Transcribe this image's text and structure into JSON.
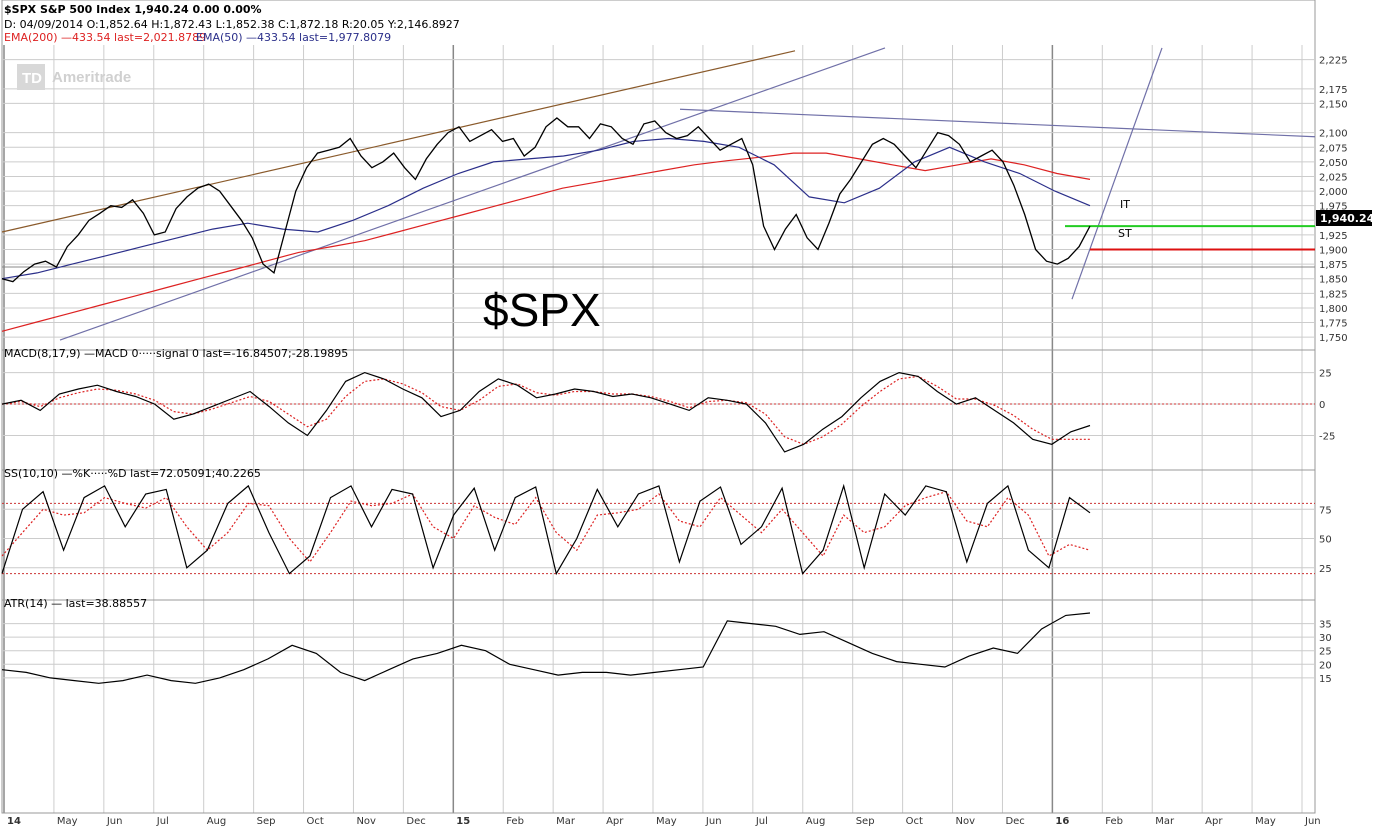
{
  "header": {
    "line1": "$SPX S&P 500 Index  1,940.24  0.00  0.00%",
    "line2": "D: 04/09/2014  O:1,852.64  H:1,872.43  L:1,852.38  C:1,872.18      R:20.05  Y:2,146.8927",
    "ema200_label": "EMA(200) —433.54 last=2,021.8789",
    "ema50_label": "EMA(50) —433.54 last=1,977.8079"
  },
  "watermark": {
    "brand_box": "TD",
    "brand_text": "Ameritrade"
  },
  "big_symbol": "$SPX",
  "annotations": {
    "it": "IT",
    "st": "ST"
  },
  "last_price_tag": "1,940.24",
  "panels": {
    "macd_label": "MACD(8,17,9) —MACD 0·····signal 0 last=-16.84507;-28.19895",
    "ss_label": "SS(10,10) —%K·····%D last=72.05091;40.2265",
    "atr_label": "ATR(14) — last=38.88557"
  },
  "colors": {
    "price": "#000000",
    "ema200": "#dd2222",
    "ema50": "#2b2f8a",
    "trend_brown": "#8a5a2b",
    "trend_slate": "#7070a8",
    "it_line": "#22cc22",
    "st_line": "#dd1111",
    "grid": "#cccccc"
  },
  "chart_data": {
    "type": "line",
    "x_axis": {
      "labels": [
        "14",
        "May",
        "Jun",
        "Jul",
        "Aug",
        "Sep",
        "Oct",
        "Nov",
        "Dec",
        "15",
        "Feb",
        "Mar",
        "Apr",
        "May",
        "Jun",
        "Jul",
        "Aug",
        "Sep",
        "Oct",
        "Nov",
        "Dec",
        "16",
        "Feb",
        "Mar",
        "Apr",
        "May",
        "Jun"
      ],
      "bold": [
        "14",
        "15",
        "16"
      ]
    },
    "price_axis": {
      "ticks": [
        2225,
        2175,
        2150,
        2100,
        2075,
        2050,
        2025,
        2000,
        1975,
        1950,
        1925,
        1900,
        1875,
        1850,
        1825,
        1800,
        1775,
        1750
      ],
      "range": [
        1740,
        2250
      ]
    },
    "series": [
      {
        "name": "$SPX",
        "values": [
          1850,
          1845,
          1862,
          1875,
          1880,
          1870,
          1905,
          1925,
          1950,
          1962,
          1975,
          1972,
          1985,
          1962,
          1925,
          1930,
          1970,
          1990,
          2005,
          2012,
          2000,
          1975,
          1950,
          1920,
          1875,
          1860,
          1930,
          2000,
          2040,
          2065,
          2070,
          2075,
          2090,
          2060,
          2040,
          2050,
          2065,
          2040,
          2020,
          2055,
          2080,
          2100,
          2110,
          2085,
          2095,
          2105,
          2085,
          2090,
          2060,
          2075,
          2110,
          2125,
          2110,
          2110,
          2090,
          2115,
          2110,
          2090,
          2080,
          2115,
          2120,
          2100,
          2090,
          2095,
          2110,
          2090,
          2070,
          2080,
          2090,
          2045,
          1940,
          1900,
          1935,
          1960,
          1920,
          1900,
          1945,
          1995,
          2020,
          2050,
          2080,
          2090,
          2080,
          2060,
          2040,
          2070,
          2100,
          2095,
          2080,
          2050,
          2060,
          2070,
          2050,
          2010,
          1960,
          1900,
          1880,
          1875,
          1885,
          1905,
          1940
        ]
      },
      {
        "name": "EMA(200)",
        "values": [
          1760,
          1775,
          1790,
          1805,
          1820,
          1835,
          1850,
          1865,
          1880,
          1895,
          1905,
          1915,
          1930,
          1945,
          1960,
          1975,
          1990,
          2005,
          2015,
          2025,
          2035,
          2045,
          2052,
          2058,
          2065,
          2065,
          2055,
          2045,
          2035,
          2045,
          2055,
          2045,
          2030,
          2020
        ]
      },
      {
        "name": "EMA(50)",
        "values": [
          1850,
          1860,
          1875,
          1890,
          1905,
          1920,
          1935,
          1945,
          1935,
          1930,
          1950,
          1975,
          2005,
          2030,
          2050,
          2055,
          2060,
          2070,
          2085,
          2090,
          2085,
          2075,
          2045,
          1990,
          1980,
          2005,
          2050,
          2075,
          2050,
          2030,
          2000,
          1975
        ]
      },
      {
        "name": "MACD",
        "values": [
          0,
          3,
          -5,
          8,
          12,
          15,
          10,
          6,
          0,
          -12,
          -8,
          -2,
          4,
          10,
          -2,
          -15,
          -25,
          -5,
          18,
          25,
          20,
          12,
          5,
          -10,
          -5,
          10,
          20,
          15,
          5,
          8,
          12,
          10,
          6,
          8,
          5,
          0,
          -5,
          5,
          3,
          0,
          -15,
          -38,
          -32,
          -20,
          -10,
          5,
          18,
          25,
          22,
          10,
          0,
          5,
          -5,
          -15,
          -28,
          -32,
          -22,
          -17
        ]
      },
      {
        "name": "Signal",
        "values": [
          0,
          2,
          -2,
          5,
          9,
          12,
          11,
          8,
          3,
          -6,
          -8,
          -4,
          1,
          6,
          2,
          -8,
          -18,
          -12,
          6,
          18,
          20,
          16,
          9,
          -2,
          -5,
          3,
          14,
          16,
          9,
          7,
          10,
          10,
          8,
          8,
          6,
          2,
          -3,
          2,
          3,
          1,
          -8,
          -26,
          -32,
          -26,
          -16,
          -2,
          10,
          20,
          22,
          14,
          4,
          4,
          -1,
          -9,
          -20,
          -28,
          -28,
          -28
        ]
      },
      {
        "name": "%K",
        "values": [
          20,
          75,
          90,
          40,
          85,
          95,
          60,
          88,
          92,
          25,
          40,
          80,
          95,
          55,
          20,
          35,
          85,
          95,
          60,
          92,
          88,
          25,
          70,
          93,
          40,
          85,
          94,
          20,
          50,
          92,
          60,
          88,
          95,
          30,
          82,
          94,
          45,
          60,
          93,
          20,
          40,
          95,
          25,
          88,
          70,
          95,
          90,
          30,
          80,
          95,
          40,
          25,
          85,
          72
        ]
      },
      {
        "name": "%D",
        "values": [
          35,
          55,
          75,
          70,
          72,
          85,
          80,
          76,
          85,
          60,
          40,
          55,
          80,
          78,
          50,
          30,
          55,
          82,
          78,
          80,
          88,
          60,
          50,
          78,
          68,
          62,
          85,
          55,
          40,
          70,
          72,
          75,
          88,
          65,
          60,
          85,
          70,
          55,
          75,
          55,
          35,
          70,
          55,
          60,
          78,
          85,
          90,
          65,
          60,
          85,
          70,
          35,
          45,
          40
        ]
      },
      {
        "name": "ATR(14)",
        "values": [
          18,
          17,
          15,
          14,
          13,
          14,
          16,
          14,
          13,
          15,
          18,
          22,
          27,
          24,
          17,
          14,
          18,
          22,
          24,
          27,
          25,
          20,
          18,
          16,
          17,
          17,
          16,
          17,
          18,
          19,
          36,
          35,
          34,
          31,
          32,
          28,
          24,
          21,
          20,
          19,
          23,
          26,
          24,
          33,
          38,
          38.9
        ]
      }
    ],
    "macd_axis": {
      "ticks": [
        25,
        0,
        -25
      ],
      "range": [
        -50,
        35
      ]
    },
    "ss_axis": {
      "ticks": [
        75,
        50,
        25
      ],
      "overbought": 80,
      "oversold": 20,
      "range": [
        0,
        100
      ]
    },
    "atr_axis": {
      "ticks": [
        35,
        30,
        25,
        20,
        15
      ],
      "range": [
        5,
        40
      ]
    },
    "levels": {
      "it": 1940,
      "st": 1900,
      "support": 1870
    }
  }
}
